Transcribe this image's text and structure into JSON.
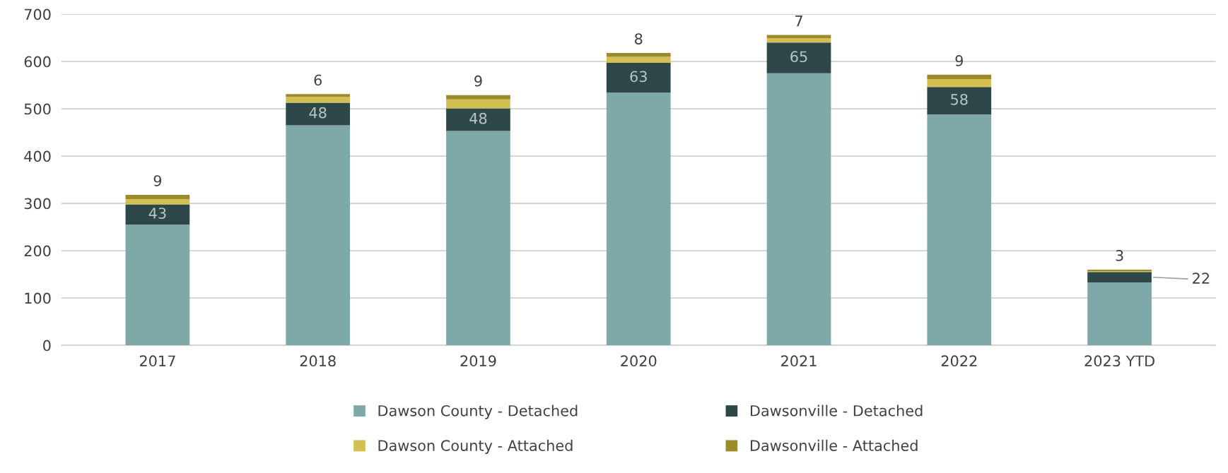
{
  "chart_data": {
    "type": "bar",
    "stacked": true,
    "categories": [
      "2017",
      "2018",
      "2019",
      "2020",
      "2021",
      "2022",
      "2023 YTD"
    ],
    "series": [
      {
        "name": "Dawson County - Detached",
        "color": "#7fa8a9",
        "values": [
          255,
          465,
          453,
          534,
          575,
          488,
          133
        ]
      },
      {
        "name": "Dawsonville - Detached",
        "color": "#2e4749",
        "values": [
          43,
          48,
          48,
          63,
          65,
          58,
          22
        ],
        "value_labels": [
          "43",
          "48",
          "48",
          "63",
          "65",
          "58",
          "22"
        ]
      },
      {
        "name": "Dawson County - Attached",
        "color": "#d2c152",
        "values": [
          11,
          12,
          19,
          13,
          9,
          17,
          2
        ]
      },
      {
        "name": "Dawsonville - Attached",
        "color": "#9b8b2d",
        "values": [
          9,
          6,
          9,
          8,
          7,
          9,
          3
        ],
        "value_labels": [
          "9",
          "6",
          "9",
          "8",
          "7",
          "9",
          "3"
        ]
      }
    ],
    "ylim": [
      0,
      700
    ],
    "yticks": [
      0,
      100,
      200,
      300,
      400,
      500,
      600,
      700
    ],
    "grid": "y",
    "legend": "bottom"
  }
}
